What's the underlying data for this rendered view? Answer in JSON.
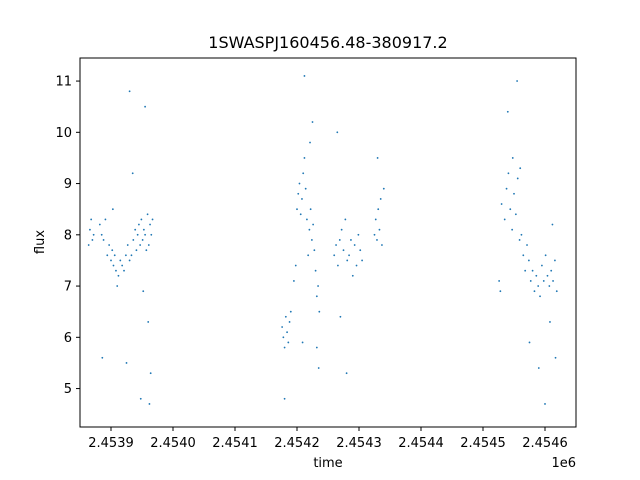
{
  "chart_data": {
    "type": "scatter",
    "title": "1SWASPJ160456.48-380917.2",
    "xlabel": "time",
    "ylabel": "flux",
    "x_offset_label": "1e6",
    "xlim": [
      2453850,
      2454650
    ],
    "ylim": [
      4.25,
      11.45
    ],
    "grid": false,
    "point_color": "#1f77b4",
    "x_ticks": [
      {
        "value": 2453900,
        "label": "2.4539"
      },
      {
        "value": 2454000,
        "label": "2.4540"
      },
      {
        "value": 2454100,
        "label": "2.4541"
      },
      {
        "value": 2454200,
        "label": "2.4542"
      },
      {
        "value": 2454300,
        "label": "2.4543"
      },
      {
        "value": 2454400,
        "label": "2.4544"
      },
      {
        "value": 2454500,
        "label": "2.4545"
      },
      {
        "value": 2454600,
        "label": "2.4546"
      }
    ],
    "y_ticks": [
      {
        "value": 5,
        "label": "5"
      },
      {
        "value": 6,
        "label": "6"
      },
      {
        "value": 7,
        "label": "7"
      },
      {
        "value": 8,
        "label": "8"
      },
      {
        "value": 9,
        "label": "9"
      },
      {
        "value": 10,
        "label": "10"
      },
      {
        "value": 11,
        "label": "11"
      }
    ],
    "series": [
      {
        "x": [
          2453864,
          2453866,
          2453868,
          2453870,
          2453872,
          2453882,
          2453885,
          2453888,
          2453891,
          2453894,
          2453897,
          2453900,
          2453902,
          2453904,
          2453906,
          2453908,
          2453910,
          2453912,
          2453915,
          2453918,
          2453921,
          2453924,
          2453927,
          2453930,
          2453933,
          2453936,
          2453939,
          2453941,
          2453943,
          2453945,
          2453947,
          2453949,
          2453951,
          2453953,
          2453955,
          2453957,
          2453959,
          2453961,
          2453963,
          2453965,
          2453967,
          2453930,
          2453935,
          2453955,
          2453962,
          2453964,
          2453960,
          2453952,
          2453948,
          2453925,
          2453886,
          2453903,
          2454176,
          2454178,
          2454180,
          2454182,
          2454184,
          2454186,
          2454188,
          2454190,
          2454180,
          2454195,
          2454198,
          2454200,
          2454202,
          2454204,
          2454206,
          2454208,
          2454210,
          2454212,
          2454214,
          2454216,
          2454218,
          2454220,
          2454222,
          2454224,
          2454226,
          2454228,
          2454230,
          2454232,
          2454234,
          2454236,
          2454212,
          2454225,
          2454232,
          2454235,
          2454221,
          2454209,
          2454260,
          2454263,
          2454266,
          2454269,
          2454272,
          2454275,
          2454278,
          2454281,
          2454284,
          2454287,
          2454290,
          2454293,
          2454296,
          2454299,
          2454302,
          2454305,
          2454270,
          2454265,
          2454280,
          2454325,
          2454327,
          2454329,
          2454331,
          2454333,
          2454335,
          2454330,
          2454337,
          2454340,
          2454526,
          2454528,
          2454530,
          2454535,
          2454538,
          2454541,
          2454544,
          2454547,
          2454550,
          2454553,
          2454556,
          2454559,
          2454562,
          2454565,
          2454568,
          2454571,
          2454574,
          2454577,
          2454580,
          2454583,
          2454586,
          2454589,
          2454592,
          2454595,
          2454598,
          2454601,
          2454604,
          2454607,
          2454610,
          2454613,
          2454616,
          2454619,
          2454540,
          2454548,
          2454555,
          2454560,
          2454575,
          2454590,
          2454600,
          2454608,
          2454612,
          2454617
        ],
        "y": [
          7.8,
          8.1,
          8.3,
          7.9,
          8.0,
          8.2,
          8.0,
          7.9,
          8.3,
          7.6,
          7.8,
          7.5,
          7.7,
          7.4,
          7.6,
          7.3,
          7.0,
          7.2,
          7.5,
          7.4,
          7.3,
          7.6,
          7.8,
          7.5,
          7.6,
          7.9,
          8.1,
          7.7,
          8.0,
          8.2,
          7.8,
          8.3,
          7.9,
          8.1,
          8.0,
          7.7,
          8.4,
          7.8,
          8.2,
          8.0,
          8.3,
          10.8,
          9.2,
          10.5,
          4.7,
          5.3,
          6.3,
          6.9,
          4.8,
          5.5,
          5.6,
          8.5,
          6.2,
          6.0,
          5.8,
          6.4,
          6.1,
          5.9,
          6.3,
          6.5,
          4.8,
          7.1,
          7.4,
          8.5,
          8.8,
          9.0,
          8.4,
          8.7,
          9.2,
          9.5,
          8.9,
          8.3,
          7.6,
          8.1,
          8.5,
          7.9,
          8.2,
          7.7,
          7.3,
          6.8,
          7.0,
          6.5,
          11.1,
          10.2,
          5.8,
          5.4,
          9.8,
          5.9,
          7.6,
          7.8,
          7.4,
          7.9,
          8.1,
          7.7,
          8.3,
          7.5,
          7.6,
          7.9,
          7.2,
          7.8,
          7.4,
          8.0,
          7.7,
          7.5,
          6.4,
          10.0,
          5.3,
          8.0,
          8.3,
          7.9,
          8.5,
          8.1,
          8.7,
          9.5,
          7.8,
          8.9,
          7.1,
          6.9,
          8.6,
          8.3,
          8.9,
          9.2,
          8.5,
          8.1,
          8.8,
          8.4,
          9.1,
          7.9,
          8.0,
          7.6,
          7.3,
          7.8,
          7.5,
          7.1,
          7.3,
          6.9,
          7.2,
          7.0,
          6.8,
          7.4,
          7.1,
          7.6,
          7.2,
          7.0,
          7.3,
          7.1,
          7.5,
          6.9,
          10.4,
          9.5,
          11.0,
          9.3,
          5.9,
          5.4,
          4.7,
          6.3,
          8.2,
          5.6
        ]
      }
    ]
  }
}
